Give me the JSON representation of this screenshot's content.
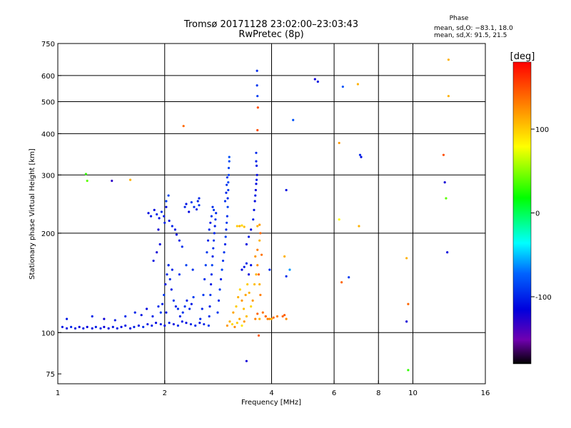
{
  "chart_data": {
    "type": "scatter",
    "title": "Tromsø 20171128 23:02:00–23:03:43",
    "subtitle": "RwPretec (8p)",
    "xlabel": "Frequency [MHz]",
    "ylabel": "Stationary phase Virtual Height [km]",
    "x_scale": "log",
    "y_scale": "log",
    "xlim": [
      1,
      16
    ],
    "ylim": [
      70,
      750
    ],
    "x_ticks": [
      1,
      2,
      4,
      6,
      8,
      10,
      16
    ],
    "y_ticks": [
      75,
      100,
      200,
      300,
      400,
      500,
      600,
      750
    ],
    "x_gridlines": [
      2,
      4,
      6,
      8,
      10
    ],
    "y_gridlines": [
      100,
      200,
      300,
      400,
      500,
      600
    ],
    "grid": true,
    "phase_stats": {
      "heading": "Phase",
      "line1": "mean, sd,O: −83.1, 18.0",
      "line2": "mean, sd,X:  91.5, 21.5"
    },
    "colorbar": {
      "label": "[deg]",
      "range": [
        -180,
        180
      ],
      "ticks": [
        100,
        0,
        -100
      ],
      "colors": [
        "#ff0000",
        "#ff8000",
        "#ffff00",
        "#00ff00",
        "#00ffff",
        "#0064ff",
        "#0000dd",
        "#7000b0",
        "#000000"
      ]
    },
    "points": [
      [
        1.03,
        104,
        -105
      ],
      [
        1.06,
        103,
        -110
      ],
      [
        1.09,
        104,
        -100
      ],
      [
        1.12,
        103,
        -108
      ],
      [
        1.15,
        104,
        -112
      ],
      [
        1.18,
        103,
        -106
      ],
      [
        1.21,
        104,
        -115
      ],
      [
        1.25,
        103,
        -110
      ],
      [
        1.28,
        104,
        -104
      ],
      [
        1.32,
        103,
        -100
      ],
      [
        1.35,
        104,
        -118
      ],
      [
        1.39,
        103,
        -112
      ],
      [
        1.43,
        104,
        -108
      ],
      [
        1.47,
        103,
        -103
      ],
      [
        1.51,
        104,
        -110
      ],
      [
        1.55,
        105,
        -106
      ],
      [
        1.6,
        103,
        -114
      ],
      [
        1.64,
        104,
        -102
      ],
      [
        1.69,
        105,
        -110
      ],
      [
        1.74,
        104,
        -96
      ],
      [
        1.79,
        106,
        -108
      ],
      [
        1.84,
        105,
        -100
      ],
      [
        1.89,
        107,
        -112
      ],
      [
        1.95,
        106,
        -104
      ],
      [
        2.0,
        105,
        -108
      ],
      [
        2.06,
        107,
        -100
      ],
      [
        2.12,
        106,
        -112
      ],
      [
        2.18,
        105,
        -96
      ],
      [
        2.24,
        108,
        -104
      ],
      [
        2.3,
        107,
        -110
      ],
      [
        2.37,
        106,
        -100
      ],
      [
        2.44,
        105,
        -98
      ],
      [
        2.51,
        107,
        -106
      ],
      [
        2.58,
        106,
        -100
      ],
      [
        2.66,
        105,
        -90
      ],
      [
        1.06,
        110,
        -105
      ],
      [
        1.25,
        112,
        -100
      ],
      [
        1.35,
        110,
        -120
      ],
      [
        1.45,
        109,
        -104
      ],
      [
        1.55,
        112,
        -98
      ],
      [
        1.65,
        115,
        -100
      ],
      [
        1.72,
        113,
        -108
      ],
      [
        1.78,
        118,
        -112
      ],
      [
        1.85,
        112,
        -100
      ],
      [
        1.92,
        120,
        -96
      ],
      [
        2.02,
        115,
        -104
      ],
      [
        1.95,
        115,
        -90
      ],
      [
        1.97,
        122,
        -100
      ],
      [
        1.99,
        130,
        -92
      ],
      [
        2.01,
        140,
        -106
      ],
      [
        2.03,
        150,
        -98
      ],
      [
        2.05,
        160,
        -110
      ],
      [
        2.07,
        145,
        -96
      ],
      [
        2.09,
        135,
        -104
      ],
      [
        2.12,
        125,
        -92
      ],
      [
        2.15,
        120,
        -102
      ],
      [
        2.18,
        118,
        -96
      ],
      [
        2.21,
        112,
        -100
      ],
      [
        2.25,
        115,
        -94
      ],
      [
        2.28,
        120,
        -92
      ],
      [
        2.31,
        125,
        -100
      ],
      [
        2.35,
        118,
        -96
      ],
      [
        2.38,
        122,
        -104
      ],
      [
        2.41,
        128,
        -90
      ],
      [
        1.86,
        165,
        -110
      ],
      [
        1.9,
        175,
        -120
      ],
      [
        1.94,
        185,
        -114
      ],
      [
        2.05,
        160,
        -96
      ],
      [
        2.1,
        155,
        -100
      ],
      [
        2.2,
        150,
        -94
      ],
      [
        2.3,
        160,
        -88
      ],
      [
        2.4,
        155,
        -94
      ],
      [
        1.8,
        230,
        -110
      ],
      [
        1.83,
        225,
        -104
      ],
      [
        1.87,
        235,
        -112
      ],
      [
        1.9,
        228,
        -100
      ],
      [
        1.93,
        222,
        -108
      ],
      [
        1.96,
        232,
        -96
      ],
      [
        1.99,
        225,
        -104
      ],
      [
        2.02,
        240,
        -112
      ],
      [
        2.06,
        218,
        -108
      ],
      [
        2.1,
        210,
        -100
      ],
      [
        2.14,
        205,
        -106
      ],
      [
        2.02,
        250,
        -90
      ],
      [
        2.05,
        260,
        -86
      ],
      [
        2.0,
        215,
        -100
      ],
      [
        1.92,
        205,
        -120
      ],
      [
        2.16,
        198,
        -110
      ],
      [
        2.2,
        190,
        -104
      ],
      [
        2.24,
        182,
        -96
      ],
      [
        2.28,
        240,
        -100
      ],
      [
        2.3,
        245,
        -108
      ],
      [
        2.34,
        232,
        -112
      ],
      [
        2.38,
        248,
        -90
      ],
      [
        2.42,
        240,
        -96
      ],
      [
        2.46,
        236,
        -104
      ],
      [
        2.5,
        243,
        -92
      ],
      [
        2.48,
        250,
        -100
      ],
      [
        2.5,
        255,
        -98
      ],
      [
        2.52,
        110,
        -96
      ],
      [
        2.55,
        118,
        -100
      ],
      [
        2.57,
        130,
        -90
      ],
      [
        2.59,
        145,
        -94
      ],
      [
        2.61,
        160,
        -88
      ],
      [
        2.63,
        175,
        -92
      ],
      [
        2.65,
        190,
        -100
      ],
      [
        2.67,
        205,
        -96
      ],
      [
        2.69,
        215,
        -104
      ],
      [
        2.71,
        225,
        -92
      ],
      [
        2.73,
        240,
        -98
      ],
      [
        2.75,
        235,
        -90
      ],
      [
        2.67,
        112,
        -94
      ],
      [
        2.68,
        120,
        -100
      ],
      [
        2.69,
        130,
        -92
      ],
      [
        2.7,
        140,
        -104
      ],
      [
        2.71,
        150,
        -96
      ],
      [
        2.72,
        160,
        -88
      ],
      [
        2.73,
        170,
        -100
      ],
      [
        2.74,
        180,
        -94
      ],
      [
        2.75,
        190,
        -92
      ],
      [
        2.76,
        200,
        -98
      ],
      [
        2.77,
        210,
        -104
      ],
      [
        2.78,
        220,
        -90
      ],
      [
        2.79,
        230,
        -96
      ],
      [
        2.82,
        115,
        -92
      ],
      [
        2.84,
        125,
        -96
      ],
      [
        2.86,
        135,
        -90
      ],
      [
        2.88,
        145,
        -100
      ],
      [
        2.9,
        155,
        -86
      ],
      [
        2.92,
        165,
        -94
      ],
      [
        2.94,
        175,
        -92
      ],
      [
        2.96,
        185,
        -98
      ],
      [
        2.97,
        195,
        -88
      ],
      [
        2.98,
        205,
        -96
      ],
      [
        2.99,
        215,
        -90
      ],
      [
        3.0,
        225,
        -94
      ],
      [
        3.01,
        240,
        -88
      ],
      [
        3.01,
        255,
        -96
      ],
      [
        3.02,
        270,
        -90
      ],
      [
        3.02,
        285,
        -84
      ],
      [
        3.03,
        300,
        -90
      ],
      [
        3.03,
        315,
        -86
      ],
      [
        3.04,
        330,
        -84
      ],
      [
        3.04,
        340,
        -82
      ],
      [
        2.96,
        250,
        -94
      ],
      [
        2.98,
        265,
        -100
      ],
      [
        2.99,
        280,
        -94
      ],
      [
        3.0,
        295,
        -92
      ],
      [
        3.0,
        105,
        120
      ],
      [
        3.05,
        108,
        110
      ],
      [
        3.1,
        106,
        95
      ],
      [
        3.15,
        104,
        125
      ],
      [
        3.2,
        107,
        100
      ],
      [
        3.25,
        110,
        115
      ],
      [
        3.3,
        105,
        90
      ],
      [
        3.35,
        108,
        120
      ],
      [
        3.4,
        112,
        105
      ],
      [
        3.12,
        115,
        115
      ],
      [
        3.18,
        120,
        100
      ],
      [
        3.22,
        128,
        110
      ],
      [
        3.26,
        135,
        95
      ],
      [
        3.3,
        125,
        120
      ],
      [
        3.34,
        118,
        105
      ],
      [
        3.38,
        130,
        115
      ],
      [
        3.42,
        140,
        100
      ],
      [
        3.46,
        132,
        110
      ],
      [
        3.5,
        120,
        95
      ],
      [
        3.54,
        125,
        120
      ],
      [
        3.58,
        140,
        105
      ],
      [
        3.62,
        150,
        110
      ],
      [
        3.2,
        210,
        100
      ],
      [
        3.25,
        210,
        110
      ],
      [
        3.3,
        211,
        95
      ],
      [
        3.35,
        209,
        105
      ],
      [
        3.65,
        210,
        110
      ],
      [
        3.7,
        212,
        120
      ],
      [
        3.3,
        155,
        -110
      ],
      [
        3.35,
        158,
        -105
      ],
      [
        3.4,
        162,
        -100
      ],
      [
        3.45,
        150,
        -115
      ],
      [
        3.5,
        160,
        -108
      ],
      [
        3.4,
        185,
        -112
      ],
      [
        3.45,
        195,
        -104
      ],
      [
        3.5,
        205,
        -110
      ],
      [
        3.55,
        220,
        -100
      ],
      [
        3.57,
        235,
        -108
      ],
      [
        3.59,
        250,
        -112
      ],
      [
        3.6,
        260,
        -104
      ],
      [
        3.61,
        270,
        -116
      ],
      [
        3.62,
        282,
        -110
      ],
      [
        3.63,
        290,
        -104
      ],
      [
        3.64,
        300,
        -112
      ],
      [
        3.63,
        320,
        -106
      ],
      [
        3.62,
        330,
        -100
      ],
      [
        3.62,
        350,
        -98
      ],
      [
        3.65,
        410,
        150
      ],
      [
        3.66,
        480,
        150
      ],
      [
        3.65,
        520,
        -90
      ],
      [
        3.64,
        560,
        -92
      ],
      [
        3.64,
        620,
        -96
      ],
      [
        3.6,
        170,
        120
      ],
      [
        3.65,
        178,
        130
      ],
      [
        3.7,
        190,
        110
      ],
      [
        3.72,
        200,
        140
      ],
      [
        3.75,
        172,
        135
      ],
      [
        3.65,
        160,
        125
      ],
      [
        3.68,
        150,
        140
      ],
      [
        3.7,
        140,
        110
      ],
      [
        3.72,
        130,
        130
      ],
      [
        3.6,
        110,
        130
      ],
      [
        3.65,
        114,
        140
      ],
      [
        3.7,
        110,
        110
      ],
      [
        3.78,
        115,
        135
      ],
      [
        3.85,
        112,
        120
      ],
      [
        3.9,
        110,
        130
      ],
      [
        3.85,
        112,
        140
      ],
      [
        3.95,
        110,
        125
      ],
      [
        4.0,
        110,
        110
      ],
      [
        4.05,
        111,
        140
      ],
      [
        4.15,
        112,
        130
      ],
      [
        4.3,
        112,
        140
      ],
      [
        4.35,
        113,
        145
      ],
      [
        4.4,
        110,
        125
      ],
      [
        3.68,
        98,
        145
      ],
      [
        3.4,
        82,
        -120
      ],
      [
        3.95,
        155,
        -95
      ],
      [
        4.35,
        170,
        110
      ],
      [
        4.5,
        155,
        -60
      ],
      [
        4.4,
        148,
        -95
      ],
      [
        4.4,
        270,
        -110
      ],
      [
        4.6,
        440,
        -80
      ],
      [
        5.3,
        585,
        -120
      ],
      [
        5.4,
        575,
        -110
      ],
      [
        6.2,
        375,
        120
      ],
      [
        6.2,
        220,
        80
      ],
      [
        6.3,
        142,
        140
      ],
      [
        6.35,
        555,
        -80
      ],
      [
        6.6,
        147,
        -90
      ],
      [
        7.1,
        345,
        -100
      ],
      [
        7.15,
        340,
        -110
      ],
      [
        7.0,
        565,
        110
      ],
      [
        7.05,
        210,
        110
      ],
      [
        9.6,
        168,
        110
      ],
      [
        9.7,
        122,
        140
      ],
      [
        9.6,
        108,
        -120
      ],
      [
        9.7,
        77,
        30
      ],
      [
        12.2,
        345,
        150
      ],
      [
        12.3,
        285,
        -120
      ],
      [
        12.4,
        255,
        40
      ],
      [
        12.5,
        175,
        -115
      ],
      [
        12.6,
        670,
        110
      ],
      [
        12.6,
        520,
        110
      ],
      [
        1.2,
        302,
        30
      ],
      [
        1.21,
        288,
        40
      ],
      [
        1.42,
        288,
        -130
      ],
      [
        1.6,
        290,
        110
      ],
      [
        2.26,
        422,
        140
      ]
    ]
  }
}
